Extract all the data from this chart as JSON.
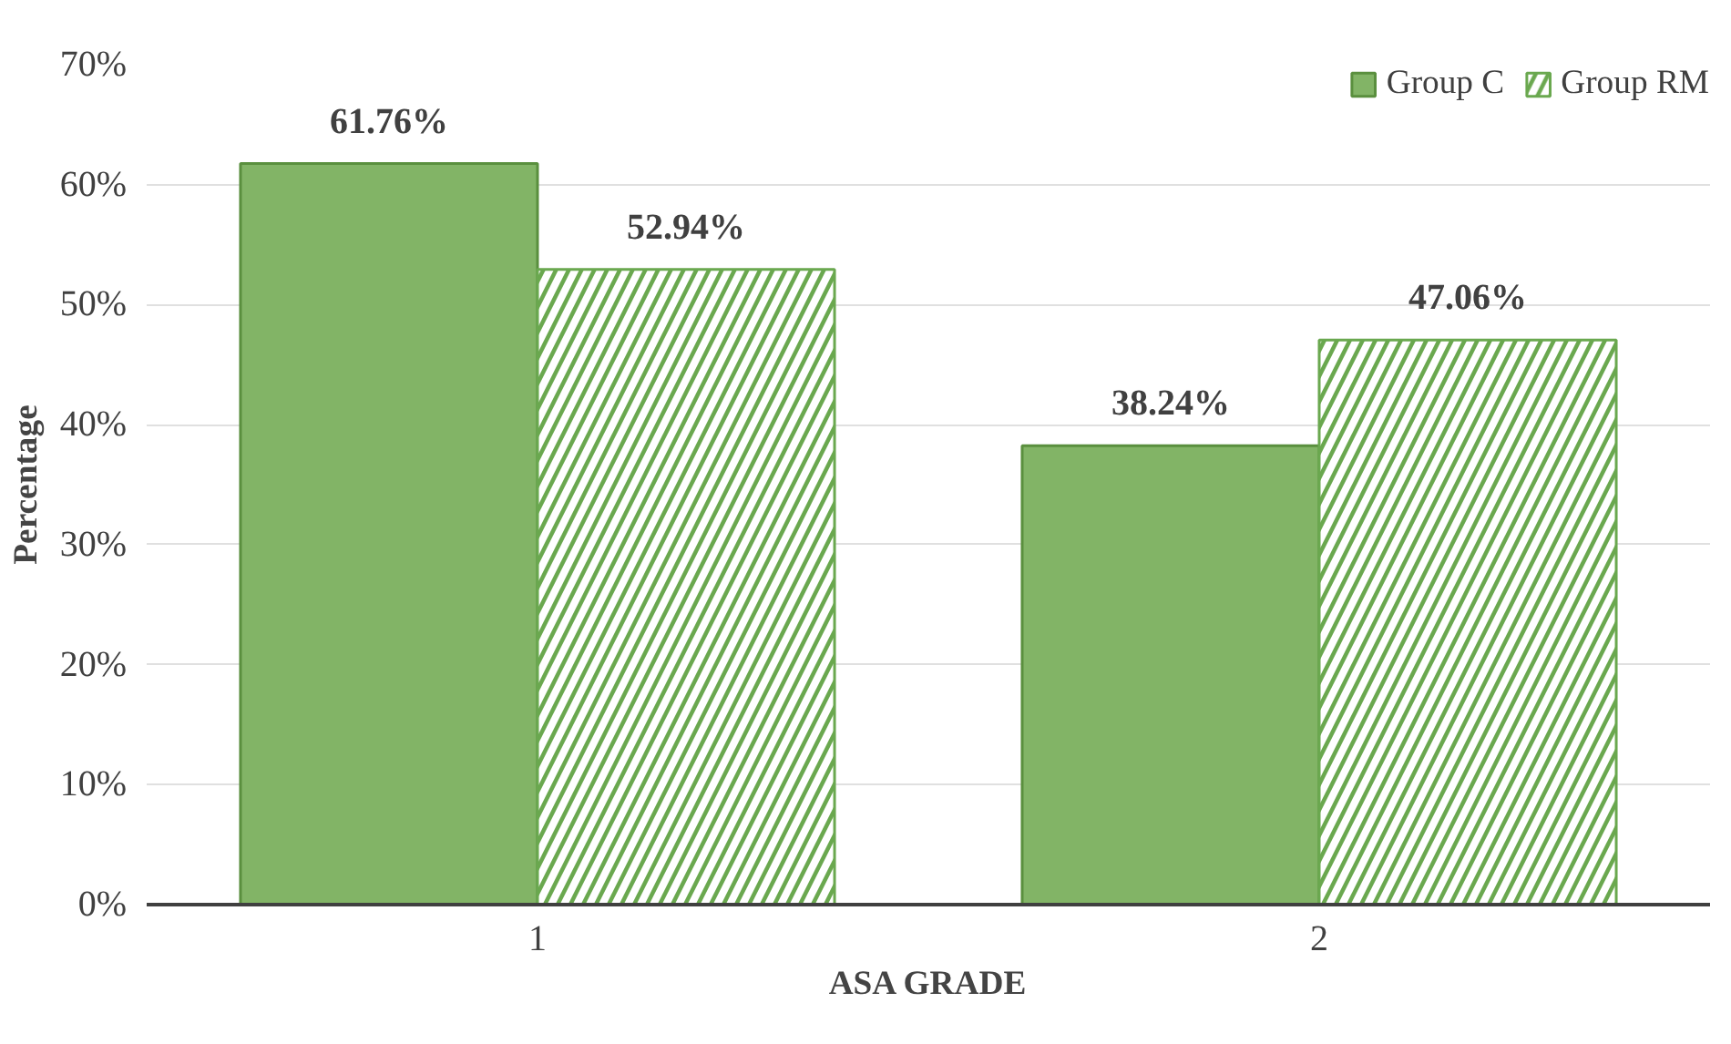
{
  "chart_data": {
    "type": "bar",
    "xlabel": "ASA GRADE",
    "ylabel": "Percentage",
    "categories": [
      "1",
      "2"
    ],
    "series": [
      {
        "name": "Group C",
        "color": "#82b466",
        "values": [
          61.76,
          38.24
        ],
        "value_labels": [
          "61.76%",
          "38.24%"
        ]
      },
      {
        "name": "Group RM",
        "color": "#6aa84f",
        "values": [
          52.94,
          47.06
        ],
        "value_labels": [
          "52.94%",
          "47.06%"
        ]
      }
    ],
    "ylim": [
      0,
      70
    ],
    "yticks": [
      {
        "value": 0,
        "label": "0%"
      },
      {
        "value": 10,
        "label": "10%"
      },
      {
        "value": 20,
        "label": "20%"
      },
      {
        "value": 30,
        "label": "30%"
      },
      {
        "value": 40,
        "label": "40%"
      },
      {
        "value": 50,
        "label": "50%"
      },
      {
        "value": 60,
        "label": "60%"
      },
      {
        "value": 70,
        "label": "70%"
      }
    ],
    "grid": "y",
    "legend": "top right"
  }
}
